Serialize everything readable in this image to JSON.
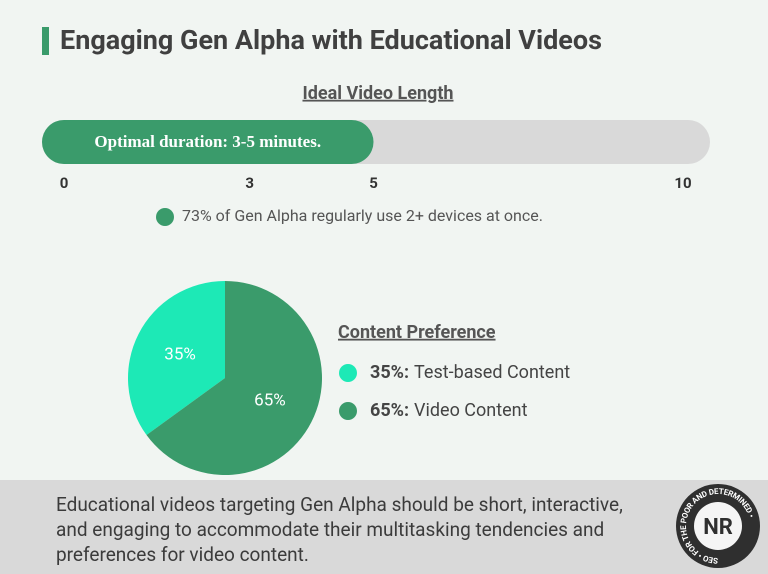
{
  "header": {
    "title": "Engaging Gen Alpha with Educational Videos"
  },
  "chart_data": [
    {
      "type": "bar",
      "title": "Ideal Video Length",
      "values": [
        5
      ],
      "value_labels": [
        "Optimal duration: 3-5 minutes."
      ],
      "xlim": [
        0,
        10
      ],
      "xticks": [
        0,
        3,
        5,
        10
      ],
      "color": "#3a9b6b",
      "annotation": "73% of Gen Alpha regularly use 2+ devices at once."
    },
    {
      "type": "pie",
      "title": "Content Preference",
      "categories": [
        "Test-based Content",
        "Video Content"
      ],
      "values": [
        35,
        65
      ],
      "value_labels": [
        "35%",
        "65%"
      ],
      "legend_labels": [
        "35%:",
        "65%:"
      ],
      "colors": [
        "#1de9b6",
        "#3a9b6b"
      ]
    }
  ],
  "footer": {
    "text": "Educational videos targeting Gen Alpha should be short, interactive, and engaging to accommodate their multitasking tendencies and preferences for video content.",
    "logo": {
      "initials": "NR",
      "ring": "SEO • FOR THE POOR AND DETERMINED •"
    }
  }
}
